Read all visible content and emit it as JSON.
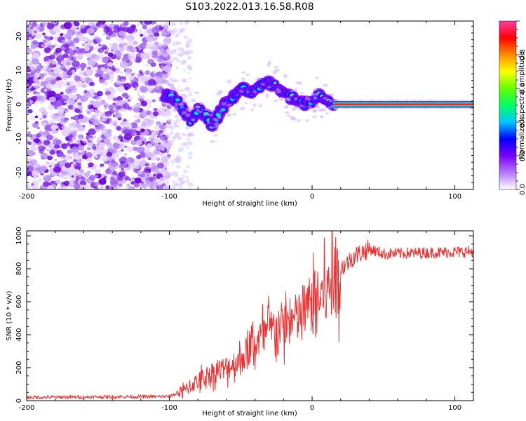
{
  "title": "S103.2022.013.16.58.R08",
  "chart_data": [
    {
      "type": "heatmap",
      "xlabel": "Height of straight line (km)",
      "ylabel": "Frequency (Hz)",
      "xlim": [
        -200,
        113
      ],
      "ylim": [
        -25,
        24.5
      ],
      "xticks": [
        "-200",
        "-100",
        "0",
        "100"
      ],
      "yticks": [
        "-20",
        "-10",
        "0",
        "10",
        "20"
      ],
      "colorbar": {
        "label": "Normalized spectral amplitude",
        "range": [
          0,
          1
        ],
        "ticks": [
          "0.0",
          "0.2",
          "0.4",
          "0.6",
          "0.8"
        ],
        "colors": [
          "#ffffff",
          "#b478ff",
          "#7800ff",
          "#0000ff",
          "#00c8ff",
          "#00ff64",
          "#64ff00",
          "#ffff00",
          "#ff8c00",
          "#ff0000",
          "#ff3ca0"
        ]
      },
      "ridge": [
        {
          "x": -100,
          "y": 2.5
        },
        {
          "x": -95,
          "y": 1
        },
        {
          "x": -90,
          "y": -2
        },
        {
          "x": -85,
          "y": -5
        },
        {
          "x": -80,
          "y": -1
        },
        {
          "x": -75,
          "y": -3
        },
        {
          "x": -70,
          "y": -7
        },
        {
          "x": -65,
          "y": -2
        },
        {
          "x": -60,
          "y": 0
        },
        {
          "x": -55,
          "y": 2
        },
        {
          "x": -50,
          "y": 5
        },
        {
          "x": -45,
          "y": 3
        },
        {
          "x": -40,
          "y": 4
        },
        {
          "x": -35,
          "y": 6
        },
        {
          "x": -30,
          "y": 6.5
        },
        {
          "x": -25,
          "y": 5.5
        },
        {
          "x": -20,
          "y": 4
        },
        {
          "x": -15,
          "y": 2
        },
        {
          "x": -10,
          "y": 1
        },
        {
          "x": -5,
          "y": 0
        },
        {
          "x": 0,
          "y": 1.5
        },
        {
          "x": 5,
          "y": 2.5
        },
        {
          "x": 10,
          "y": 1.5
        },
        {
          "x": 15,
          "y": 0
        },
        {
          "x": 113,
          "y": 0
        }
      ]
    },
    {
      "type": "line",
      "xlabel": "Height of straight line (km)",
      "ylabel": "SNR (10 * v/v)",
      "xlim": [
        -200,
        113
      ],
      "ylim": [
        0,
        1030
      ],
      "xticks": [
        "-200",
        "-100",
        "0",
        "100"
      ],
      "yticks": [
        "0",
        "200",
        "400",
        "600",
        "800",
        "1000"
      ],
      "color": "#f03030",
      "envelope": [
        {
          "x": -200,
          "y": 20
        },
        {
          "x": -100,
          "y": 25
        },
        {
          "x": -90,
          "y": 60
        },
        {
          "x": -80,
          "y": 120
        },
        {
          "x": -70,
          "y": 170
        },
        {
          "x": -60,
          "y": 200
        },
        {
          "x": -50,
          "y": 250
        },
        {
          "x": -40,
          "y": 350
        },
        {
          "x": -30,
          "y": 420
        },
        {
          "x": -20,
          "y": 460
        },
        {
          "x": -10,
          "y": 500
        },
        {
          "x": 0,
          "y": 600
        },
        {
          "x": 10,
          "y": 650
        },
        {
          "x": 15,
          "y": 700
        },
        {
          "x": 20,
          "y": 800
        },
        {
          "x": 30,
          "y": 880
        },
        {
          "x": 40,
          "y": 920
        },
        {
          "x": 50,
          "y": 890
        },
        {
          "x": 113,
          "y": 905
        }
      ]
    }
  ]
}
